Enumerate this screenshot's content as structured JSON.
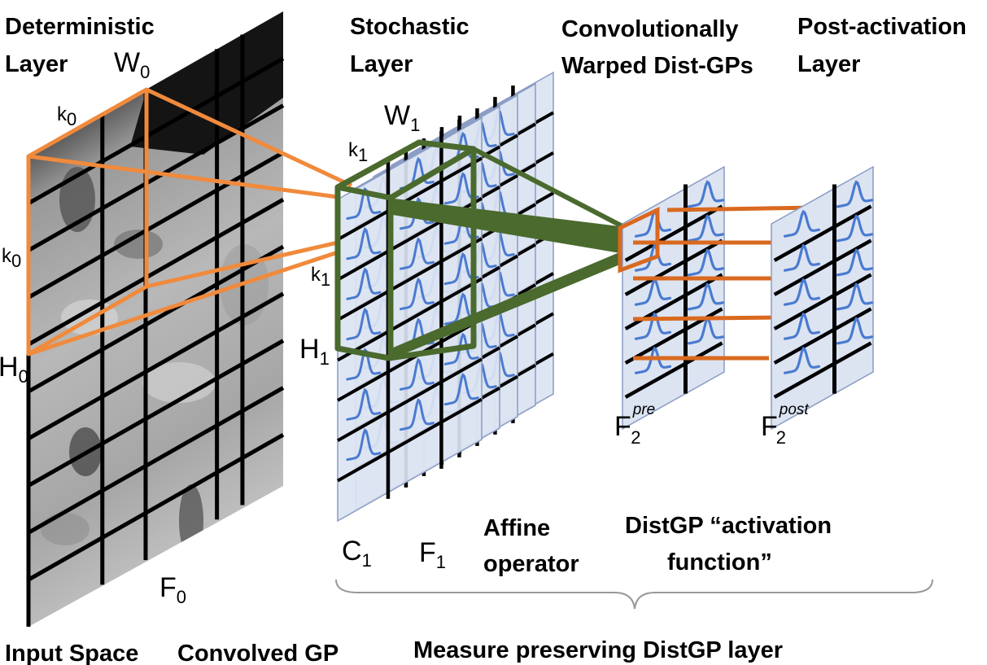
{
  "headers": {
    "deterministic_l1": "Deterministic",
    "deterministic_l2": "Layer",
    "stochastic_l1": "Stochastic",
    "stochastic_l2": "Layer",
    "conv_warped_l1": "Convolutionally",
    "conv_warped_l2": "Warped Dist-GPs",
    "post_activation_l1": "Post-activation",
    "post_activation_l2": "Layer"
  },
  "symbols": {
    "W0": "W",
    "W0_sub": "0",
    "k0_top": "k",
    "k0_top_sub": "0",
    "k0_left": "k",
    "k0_left_sub": "0",
    "H0": "H",
    "H0_sub": "0",
    "F0": "F",
    "F0_sub": "0",
    "W1": "W",
    "W1_sub": "1",
    "k1_top": "k",
    "k1_top_sub": "1",
    "k1_mid": "k",
    "k1_mid_sub": "1",
    "H1": "H",
    "H1_sub": "1",
    "C1": "C",
    "C1_sub": "1",
    "F1": "F",
    "F1_sub": "1",
    "F2pre": "F",
    "F2pre_sub": "2",
    "F2pre_sup": "pre",
    "F2post": "F",
    "F2post_sub": "2",
    "F2post_sup": "post"
  },
  "labels": {
    "affine_l1": "Affine",
    "affine_l2": "operator",
    "distgp_act_l1": "DistGP “activation",
    "distgp_act_l2": "function”"
  },
  "captions": {
    "input_space": "Input Space",
    "convolved_gp": "Convolved GP",
    "measure_preserving": "Measure preserving DistGP layer"
  },
  "colors": {
    "orange": "#F08A3C",
    "dark_orange": "#D9691F",
    "green": "#4A6A2E",
    "panel_fill": "#DCE4F2",
    "panel_stroke": "#8A9CC4",
    "curve_blue": "#4A7BD0",
    "grid_black": "#000000"
  },
  "icons": [
    "grayscale-input-image",
    "gaussian-curve-icon"
  ]
}
